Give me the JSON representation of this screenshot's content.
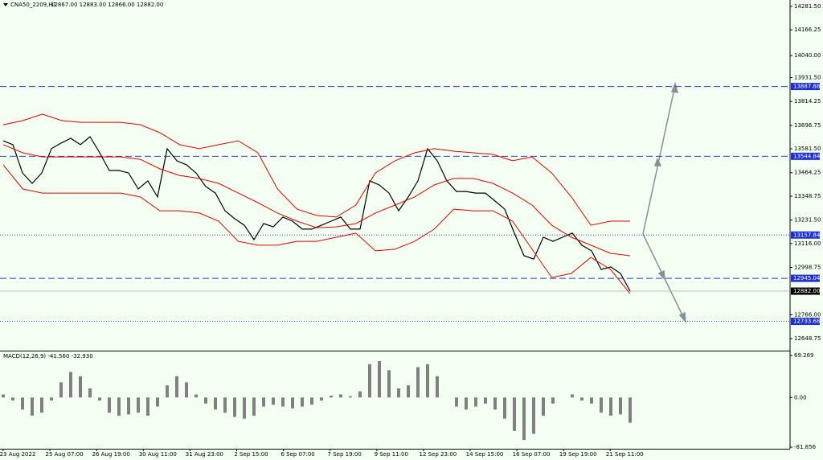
{
  "header": {
    "symbol": "CNA50_2209,H1",
    "ohlc": "12867.00 12883.00 12866.00 12882.00"
  },
  "chart_data": [
    {
      "type": "line",
      "ylim": [
        12589.6,
        14313.1
      ],
      "yticks": [
        {
          "value": 14281.5,
          "label": "14281.50"
        },
        {
          "value": 14166.25,
          "label": "14166.25"
        },
        {
          "value": 14040,
          "label": "14040.00"
        },
        {
          "value": 13931.5,
          "label": "13931.50"
        },
        {
          "value": 13814.25,
          "label": "13814.25"
        },
        {
          "value": 13696.75,
          "label": "13696.75"
        },
        {
          "value": 13581.5,
          "label": "13581.50"
        },
        {
          "value": 13464.25,
          "label": "13464.25"
        },
        {
          "value": 13348.75,
          "label": "13348.75"
        },
        {
          "value": 13231.5,
          "label": "13231.50"
        },
        {
          "value": 13116,
          "label": "13116.00"
        },
        {
          "value": 12998.75,
          "label": "12998.75"
        },
        {
          "value": 12766,
          "label": "12766.00"
        },
        {
          "value": 12648.75,
          "label": "12648.75"
        }
      ],
      "series": [
        {
          "color": "#000000",
          "values": [
            13621,
            13602,
            13463,
            13412,
            13463,
            13582,
            13610,
            13633,
            13602,
            13641,
            13562,
            13475,
            13475,
            13463,
            13384,
            13424,
            13345,
            13582,
            13523,
            13503,
            13463,
            13396,
            13364,
            13277,
            13238,
            13206,
            13135,
            13214,
            13198,
            13246,
            13226,
            13187,
            13187,
            13206,
            13226,
            13246,
            13187,
            13187,
            13424,
            13404,
            13364,
            13277,
            13345,
            13424,
            13582,
            13523,
            13424,
            13372,
            13372,
            13364,
            13364,
            13325,
            13285,
            13167,
            13056,
            13040,
            13147,
            13127,
            13147,
            13167,
            13108,
            13080,
            12989,
            13001,
            12969,
            12882
          ]
        },
        {
          "color": "#e00000",
          "values": [
            13700,
            13720,
            13752,
            13720,
            13712,
            13712,
            13712,
            13700,
            13661,
            13602,
            13582,
            13602,
            13621,
            13562,
            13384,
            13285,
            13254,
            13246,
            13305,
            13463,
            13523,
            13562,
            13582,
            13570,
            13562,
            13554,
            13523,
            13542,
            13463,
            13345,
            13206,
            13226,
            13226
          ]
        },
        {
          "color": "#e00000",
          "values": [
            13602,
            13562,
            13542,
            13542,
            13542,
            13542,
            13542,
            13530,
            13483,
            13451,
            13436,
            13412,
            13364,
            13317,
            13266,
            13226,
            13194,
            13198,
            13214,
            13266,
            13305,
            13345,
            13404,
            13436,
            13436,
            13412,
            13364,
            13305,
            13206,
            13147,
            13108,
            13068,
            13056
          ]
        },
        {
          "color": "#e00000",
          "values": [
            13503,
            13384,
            13364,
            13364,
            13364,
            13364,
            13364,
            13345,
            13277,
            13277,
            13266,
            13226,
            13127,
            13108,
            13108,
            13127,
            13127,
            13147,
            13167,
            13080,
            13088,
            13127,
            13187,
            13285,
            13277,
            13277,
            13226,
            13088,
            12949,
            12969,
            13048,
            12989,
            12870
          ]
        }
      ],
      "levels": [
        {
          "value": 13887.88,
          "label": "13887.88",
          "style": "dashed"
        },
        {
          "value": 13544.84,
          "label": "13544.84",
          "style": "dashed"
        },
        {
          "value": 13157.84,
          "label": "13157.84",
          "style": "dotted"
        },
        {
          "value": 12945.04,
          "label": "12945.04",
          "style": "dashed"
        },
        {
          "value": 12733.68,
          "label": "12733.68",
          "style": "dotted"
        }
      ],
      "current": {
        "value": 12882,
        "label": "12882.00"
      }
    },
    {
      "type": "bar",
      "title": "MACD(12,26,9) -41.560 -32.930",
      "ylim": [
        -84.5,
        75.9
      ],
      "yticks": [
        69.269,
        {
          "value": 0,
          "label": "0.00"
        },
        -81.856
      ],
      "color": "#808080",
      "values": [
        5,
        -5,
        -20,
        -30,
        -25,
        -5,
        25,
        42,
        35,
        15,
        -5,
        -25,
        -30,
        -28,
        -25,
        -30,
        -15,
        20,
        35,
        25,
        5,
        -10,
        -20,
        -25,
        -32,
        -35,
        -30,
        -15,
        -12,
        -15,
        -18,
        -15,
        -12,
        -5,
        3,
        5,
        2,
        10,
        55,
        60,
        45,
        15,
        20,
        50,
        55,
        35,
        0,
        -15,
        -20,
        -15,
        -10,
        -20,
        -35,
        -55,
        -70,
        -60,
        -30,
        -10,
        0,
        5,
        -5,
        -10,
        -25,
        -30,
        -28,
        -41.56
      ]
    }
  ],
  "time_axis": [
    "23 Aug 2022",
    "25 Aug 07:00",
    "26 Aug 19:00",
    "30 Aug 11:00",
    "31 Aug 23:00",
    "2 Sep 15:00",
    "6 Sep 07:00",
    "7 Sep 19:00",
    "9 Sep 11:00",
    "12 Sep 23:00",
    "14 Sep 15:00",
    "16 Sep 07:00",
    "19 Sep 19:00",
    "21 Sep 11:00"
  ]
}
